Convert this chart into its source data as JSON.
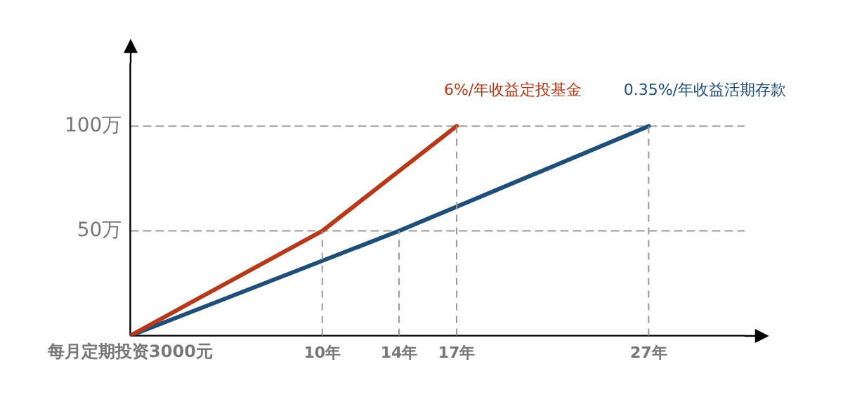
{
  "chart_data": {
    "type": "line",
    "xlabel": "每月定期投资3000元",
    "xlim": [
      0,
      32
    ],
    "xticks": [
      {
        "value": 10,
        "label": "10年"
      },
      {
        "value": 14,
        "label": "14年"
      },
      {
        "value": 17,
        "label": "17年"
      },
      {
        "value": 27,
        "label": "27年"
      }
    ],
    "ylim": [
      0,
      130
    ],
    "yticks": [
      {
        "value": 50,
        "label": "50万"
      },
      {
        "value": 100,
        "label": "100万"
      }
    ],
    "series": [
      {
        "name": "6%/年收益定投基金",
        "color": "#b5391a",
        "x": [
          0,
          10,
          17
        ],
        "values": [
          0,
          50,
          100
        ]
      },
      {
        "name": "0.35%/年收益活期存款",
        "color": "#1f4e79",
        "x": [
          0,
          14,
          27
        ],
        "values": [
          0,
          50,
          100
        ]
      }
    ],
    "ref_lines": [
      {
        "axis": "y",
        "value": 50,
        "color": "#999999",
        "line_style": "dashed"
      },
      {
        "axis": "y",
        "value": 100,
        "color": "#999999",
        "line_style": "dashed"
      }
    ],
    "legend": false,
    "marker": "none",
    "line_style": "solid"
  }
}
